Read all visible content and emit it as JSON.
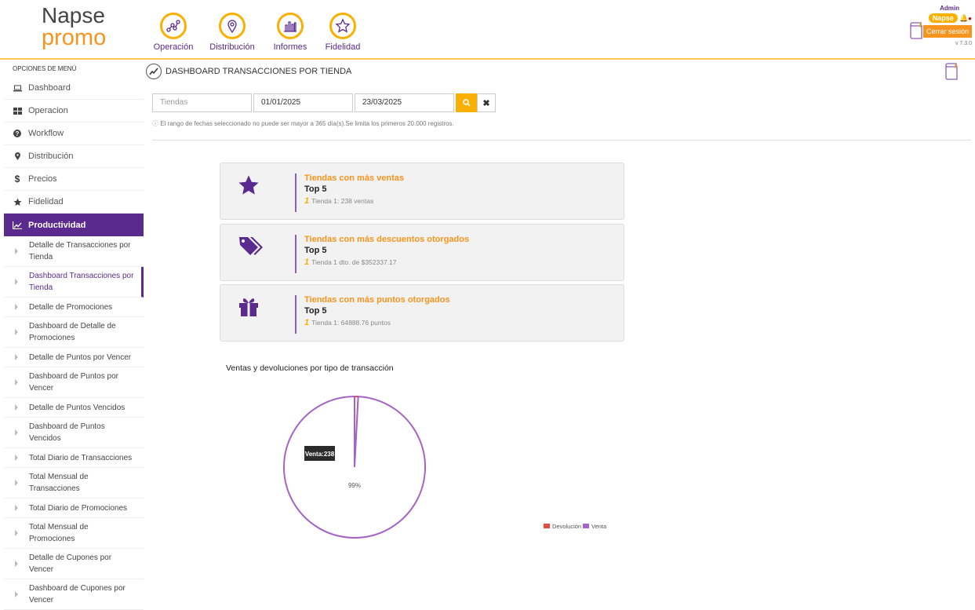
{
  "header": {
    "logo_line1": "Napse",
    "logo_line2": "promo",
    "nav": [
      {
        "label": "Operación",
        "icon": "graph-icon"
      },
      {
        "label": "Distribución",
        "icon": "map-pin-icon"
      },
      {
        "label": "Informes",
        "icon": "bar-chart-icon"
      },
      {
        "label": "Fidelidad",
        "icon": "star-icon"
      }
    ],
    "user": {
      "name": "Admin",
      "org": "Napse",
      "logout": "Cerrar sesión",
      "version": "v 7.3.0"
    }
  },
  "sidebar": {
    "title": "OPCIONES DE MENÚ",
    "items": [
      {
        "label": "Dashboard",
        "icon": "laptop-icon"
      },
      {
        "label": "Operacion",
        "icon": "grid-icon"
      },
      {
        "label": "Workflow",
        "icon": "question-icon"
      },
      {
        "label": "Distribución",
        "icon": "map-marker-icon"
      },
      {
        "label": "Precios",
        "icon": "dollar-icon"
      },
      {
        "label": "Fidelidad",
        "icon": "star-icon"
      },
      {
        "label": "Productividad",
        "icon": "line-chart-icon"
      }
    ],
    "subitems": [
      "Detalle de Transacciones por Tienda",
      "Dashboard Transacciones por Tienda",
      "Detalle de Promociones",
      "Dashboard de Detalle de Promociones",
      "Detalle de Puntos por Vencer",
      "Dashboard de Puntos por Vencer",
      "Detalle de Puntos Vencidos",
      "Dashboard de Puntos Vencidos",
      "Total Diario de Transacciones",
      "Total Mensual de Transacciones",
      "Total Diario de Promociones",
      "Total Mensual de Promociones",
      "Detalle de Cupones por Vencer",
      "Dashboard de Cupones por Vencer"
    ],
    "current_subitem": "Dashboard Transacciones por Tienda"
  },
  "page": {
    "title": "DASHBOARD TRANSACCIONES POR TIENDA",
    "filters": {
      "store_placeholder": "Tiendas",
      "date_from": "01/01/2025",
      "date_to": "23/03/2025"
    },
    "note": "El rango de fechas seleccionado no puede ser mayor a 365 día(s).Se limita los primeros 20.000 registros.",
    "cards": [
      {
        "title": "Tiendas con más ventas",
        "sub": "Top 5",
        "rank": "1",
        "detail": "Tienda 1: 238 ventas",
        "icon": "star-icon"
      },
      {
        "title": "Tiendas con más descuentos otorgados",
        "sub": "Top 5",
        "rank": "1",
        "detail": "Tienda 1 dto. de $352337.17",
        "icon": "tags-icon"
      },
      {
        "title": "Tiendas con más puntos otorgados",
        "sub": "Top 5",
        "rank": "1",
        "detail": "Tienda 1: 64888.76 puntos",
        "icon": "gift-icon"
      }
    ]
  },
  "colors": {
    "primary": "#5b2a8e",
    "accent": "#f9b000",
    "orange": "#f7941d"
  },
  "chart_data": {
    "type": "pie",
    "title": "Ventas y devoluciones por tipo de transacción",
    "slices": [
      {
        "name": "Devolución",
        "value": 2,
        "color": "#e84c3d"
      },
      {
        "name": "Venta",
        "value": 238,
        "color": "#a463c6"
      }
    ],
    "slice_label": "99%",
    "tooltip": "Venta:238",
    "legend": "bottom-right"
  }
}
